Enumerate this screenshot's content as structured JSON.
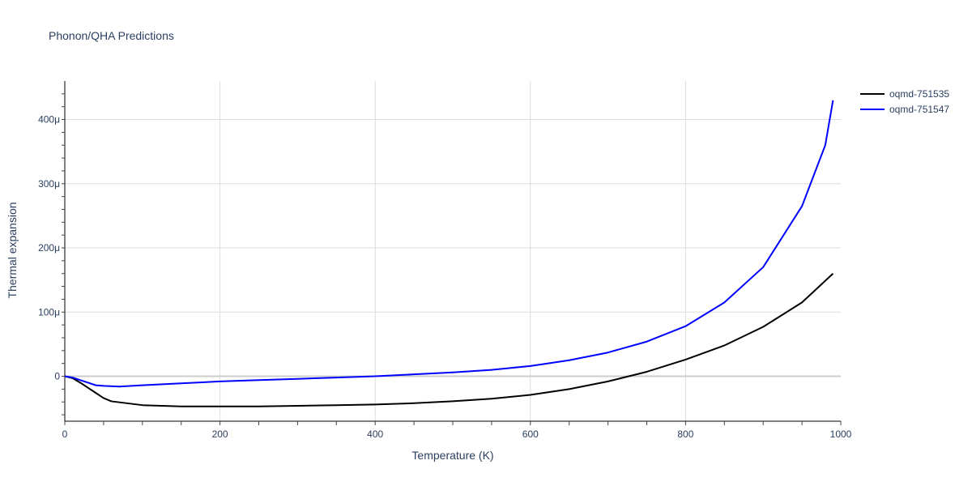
{
  "chart_data": {
    "type": "line",
    "title": "Phonon/QHA Predictions",
    "xlabel": "Temperature (K)",
    "ylabel": "Thermal expansion",
    "xlim": [
      0,
      1000
    ],
    "ylim": [
      -7e-05,
      0.00046
    ],
    "x_ticks": [
      0,
      200,
      400,
      600,
      800,
      1000
    ],
    "x_tick_labels": [
      "0",
      "200",
      "400",
      "600",
      "800",
      "1000"
    ],
    "y_ticks": [
      0,
      0.0001,
      0.0002,
      0.0003,
      0.0004
    ],
    "y_tick_labels": [
      "0",
      "100μ",
      "200μ",
      "300μ",
      "400μ"
    ],
    "grid": true,
    "legend_position": "top-right",
    "series": [
      {
        "name": "oqmd-751535",
        "color": "#000000",
        "points": [
          [
            0,
            0
          ],
          [
            10,
            -3e-06
          ],
          [
            20,
            -1e-05
          ],
          [
            30,
            -1.8e-05
          ],
          [
            40,
            -2.6e-05
          ],
          [
            50,
            -3.4e-05
          ],
          [
            60,
            -3.9e-05
          ],
          [
            80,
            -4.2e-05
          ],
          [
            100,
            -4.5e-05
          ],
          [
            150,
            -4.7e-05
          ],
          [
            200,
            -4.7e-05
          ],
          [
            250,
            -4.7e-05
          ],
          [
            300,
            -4.6e-05
          ],
          [
            350,
            -4.5e-05
          ],
          [
            400,
            -4.4e-05
          ],
          [
            450,
            -4.2e-05
          ],
          [
            500,
            -3.9e-05
          ],
          [
            550,
            -3.5e-05
          ],
          [
            600,
            -2.9e-05
          ],
          [
            650,
            -2e-05
          ],
          [
            700,
            -8e-06
          ],
          [
            750,
            7e-06
          ],
          [
            800,
            2.6e-05
          ],
          [
            850,
            4.8e-05
          ],
          [
            900,
            7.7e-05
          ],
          [
            950,
            0.000115
          ],
          [
            990,
            0.00016
          ]
        ]
      },
      {
        "name": "oqmd-751547",
        "color": "#0000ff",
        "points": [
          [
            0,
            0
          ],
          [
            10,
            -2e-06
          ],
          [
            20,
            -6e-06
          ],
          [
            30,
            -1e-05
          ],
          [
            40,
            -1.4e-05
          ],
          [
            50,
            -1.5e-05
          ],
          [
            70,
            -1.6e-05
          ],
          [
            100,
            -1.4e-05
          ],
          [
            150,
            -1.1e-05
          ],
          [
            200,
            -8e-06
          ],
          [
            250,
            -6e-06
          ],
          [
            300,
            -4e-06
          ],
          [
            350,
            -2e-06
          ],
          [
            400,
            0
          ],
          [
            450,
            3e-06
          ],
          [
            500,
            6e-06
          ],
          [
            550,
            1e-05
          ],
          [
            600,
            1.6e-05
          ],
          [
            650,
            2.5e-05
          ],
          [
            700,
            3.7e-05
          ],
          [
            750,
            5.4e-05
          ],
          [
            800,
            7.8e-05
          ],
          [
            850,
            0.000115
          ],
          [
            900,
            0.00017
          ],
          [
            950,
            0.000265
          ],
          [
            980,
            0.00036
          ],
          [
            990,
            0.00043
          ]
        ]
      }
    ]
  }
}
